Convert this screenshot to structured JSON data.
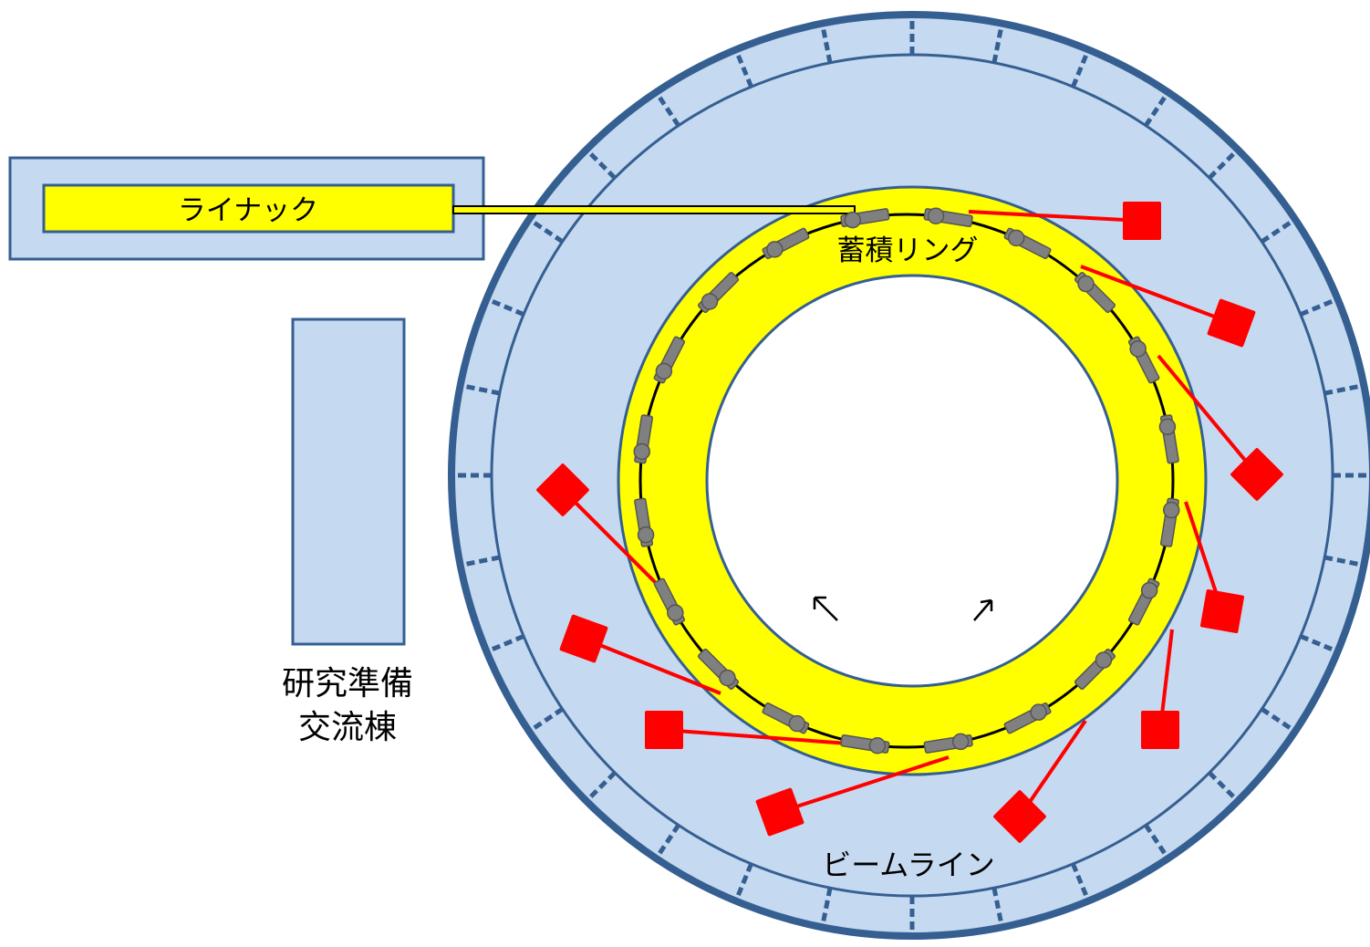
{
  "labels": {
    "linac": "ライナック",
    "storage_ring": "蓄積リング",
    "research_building_line1": "研究準備",
    "research_building_line2": "交流棟",
    "beamline": "ビームライン"
  },
  "colors": {
    "building_fill": "#c5d9f0",
    "building_stroke": "#355f91",
    "ring_yellow": "#ffff00",
    "magnet_gray": "#808080",
    "beamline_red": "#ff0000",
    "beam_path": "#000000"
  },
  "beamline_count": 10,
  "bending_magnet_count": 20,
  "quadrupole_count": 20
}
